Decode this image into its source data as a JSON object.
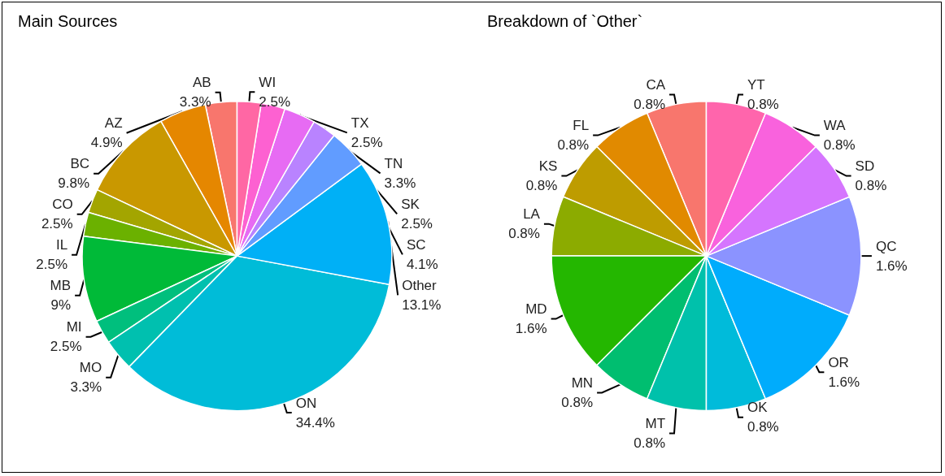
{
  "chart_data": [
    {
      "type": "pie",
      "title": "Main Sources",
      "categories": [
        "AB",
        "AZ",
        "BC",
        "CO",
        "IL",
        "MB",
        "MI",
        "MO",
        "ON",
        "Other",
        "SC",
        "SK",
        "TN",
        "TX",
        "WI"
      ],
      "values": [
        3.3,
        4.9,
        9.8,
        2.5,
        2.5,
        9,
        2.5,
        3.3,
        34.4,
        13.1,
        4.1,
        2.5,
        3.3,
        2.5,
        2.5
      ],
      "value_labels": [
        "3.3%",
        "4.9%",
        "9.8%",
        "2.5%",
        "2.5%",
        "9%",
        "2.5%",
        "3.3%",
        "34.4%",
        "13.1%",
        "4.1%",
        "2.5%",
        "3.3%",
        "2.5%",
        "2.5%"
      ],
      "colors": [
        "#f8766d",
        "#e58700",
        "#c99800",
        "#a3a500",
        "#6bb100",
        "#00ba38",
        "#00bf7d",
        "#00c0af",
        "#00bcd8",
        "#00b0f6",
        "#619cff",
        "#b983ff",
        "#e76bf3",
        "#fd61d1",
        "#ff67a4"
      ]
    },
    {
      "type": "pie",
      "title": "Breakdown of `Other`",
      "categories": [
        "CA",
        "FL",
        "KS",
        "LA",
        "MD",
        "MN",
        "MT",
        "OK",
        "OR",
        "QC",
        "SD",
        "WA",
        "YT"
      ],
      "values": [
        0.8,
        0.8,
        0.8,
        0.8,
        1.6,
        0.8,
        0.8,
        0.8,
        1.6,
        1.6,
        0.8,
        0.8,
        0.8
      ],
      "value_labels": [
        "0.8%",
        "0.8%",
        "0.8%",
        "0.8%",
        "1.6%",
        "0.8%",
        "0.8%",
        "0.8%",
        "1.6%",
        "1.6%",
        "0.8%",
        "0.8%",
        "0.8%"
      ],
      "colors": [
        "#f8766d",
        "#e18a00",
        "#be9c00",
        "#8cab00",
        "#24b700",
        "#00be70",
        "#00c1ab",
        "#00bbda",
        "#00acfc",
        "#8b93ff",
        "#d575fe",
        "#f962dd",
        "#ff65ac"
      ]
    }
  ]
}
